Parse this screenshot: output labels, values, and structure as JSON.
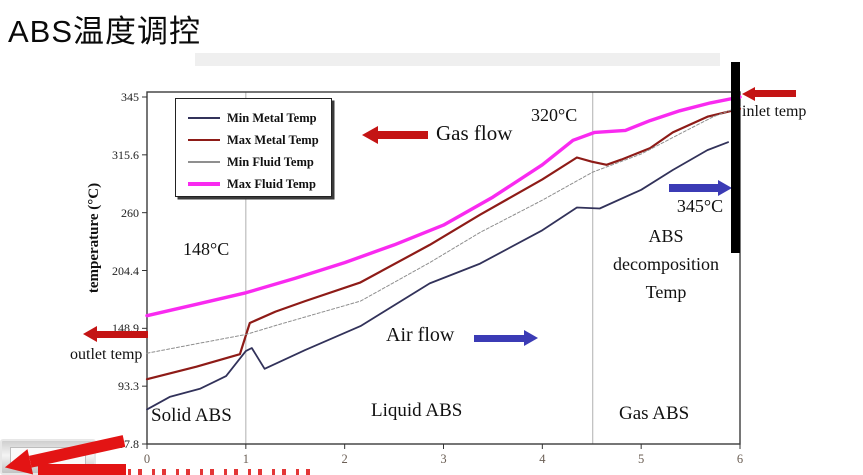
{
  "page": {
    "title": "ABS温度调控"
  },
  "chart_data": {
    "type": "line",
    "title": "",
    "xlabel": "",
    "ylabel": "temperature (°C)",
    "x_ticks": [
      "0",
      "1",
      "2",
      "3",
      "4",
      "5",
      "6"
    ],
    "y_ticks": [
      "345",
      "315.6",
      "260",
      "204.4",
      "148.9",
      "93.3",
      "37.8"
    ],
    "x_range": [
      0,
      6
    ],
    "grid": "region dividers only",
    "legend_position": "top-left inside plot",
    "region_dividers_x": [
      1,
      4.51
    ],
    "regions": [
      "Solid ABS",
      "Liquid ABS",
      "Gas ABS"
    ],
    "series": [
      {
        "name": "Min Metal Temp",
        "color": "#32325a",
        "width": 1.8,
        "dash": "",
        "points": [
          [
            0,
            71
          ],
          [
            0.23,
            83
          ],
          [
            0.54,
            91
          ],
          [
            0.8,
            103
          ],
          [
            1.0,
            127
          ],
          [
            1.06,
            130
          ],
          [
            1.19,
            110
          ],
          [
            1.6,
            128
          ],
          [
            2.16,
            151
          ],
          [
            2.86,
            192
          ],
          [
            3.37,
            211
          ],
          [
            4.0,
            243
          ],
          [
            4.35,
            265
          ],
          [
            4.58,
            264
          ],
          [
            5.0,
            282
          ],
          [
            5.32,
            301
          ],
          [
            5.67,
            318
          ],
          [
            5.88,
            322
          ]
        ]
      },
      {
        "name": "Max Metal Temp",
        "color": "#8e1b17",
        "width": 2.2,
        "dash": "",
        "points": [
          [
            0,
            100
          ],
          [
            0.5,
            112
          ],
          [
            0.94,
            124
          ],
          [
            1.04,
            154
          ],
          [
            1.3,
            165
          ],
          [
            1.6,
            175
          ],
          [
            2.16,
            193
          ],
          [
            2.86,
            229
          ],
          [
            3.37,
            258
          ],
          [
            4.0,
            292
          ],
          [
            4.35,
            313
          ],
          [
            4.5,
            309
          ],
          [
            4.65,
            306
          ],
          [
            4.8,
            311
          ],
          [
            5.09,
            319
          ],
          [
            5.32,
            327
          ],
          [
            5.67,
            335
          ],
          [
            6,
            339
          ]
        ]
      },
      {
        "name": "Min Fluid Temp",
        "color": "#8f8f8f",
        "width": 1,
        "dash": "3 2",
        "points": [
          [
            0,
            125
          ],
          [
            0.5,
            134
          ],
          [
            1.0,
            143
          ],
          [
            1.35,
            153
          ],
          [
            2.16,
            175
          ],
          [
            2.86,
            212
          ],
          [
            3.37,
            241
          ],
          [
            4.0,
            272
          ],
          [
            4.51,
            299
          ],
          [
            5.0,
            316
          ],
          [
            5.42,
            327
          ],
          [
            5.73,
            335
          ],
          [
            6,
            340
          ]
        ]
      },
      {
        "name": "Max Fluid Temp",
        "color": "#f92af0",
        "width": 3.4,
        "dash": "",
        "points": [
          [
            0,
            161
          ],
          [
            0.5,
            172
          ],
          [
            1.0,
            183
          ],
          [
            1.5,
            197
          ],
          [
            2.0,
            212
          ],
          [
            2.5,
            229
          ],
          [
            3.0,
            248
          ],
          [
            3.5,
            275
          ],
          [
            4.0,
            306
          ],
          [
            4.31,
            323
          ],
          [
            4.53,
            327
          ],
          [
            4.84,
            328
          ],
          [
            5.09,
            333
          ],
          [
            5.39,
            338
          ],
          [
            5.7,
            342
          ],
          [
            6,
            345
          ]
        ]
      }
    ],
    "annotations": [
      {
        "text": "148°C",
        "near": "left region above Max Fluid curve"
      },
      {
        "text": "320°C",
        "near": "Max Fluid curve at region divider x≈4.5"
      },
      {
        "text": "345°C",
        "near": "right region, ABS decomposition temp"
      },
      {
        "text": "Gas flow",
        "arrow": "red, pointing left"
      },
      {
        "text": "Air flow",
        "arrow": "blue, pointing right"
      },
      {
        "text": "inlet temp",
        "arrow": "red, pointing left at top-right black bar"
      },
      {
        "text": "outlet temp",
        "arrow": "red, pointing left at y≈148.9"
      }
    ]
  },
  "labels": {
    "gas_flow": "Gas flow",
    "temp_320": "320°C",
    "temp_148": "148°C",
    "temp_345": "345°C",
    "abs_decomposition_line1": "ABS",
    "abs_decomposition_line2": "decomposition",
    "abs_decomposition_line3": "Temp",
    "air_flow": "Air flow",
    "inlet_temp": "inlet temp",
    "outlet_temp": "outlet temp"
  },
  "colors": {
    "red_arrow": "#c41414",
    "blue_arrow": "#3b3bb5",
    "plot_border": "#3c3c3c",
    "divider": "#b0b0b0"
  }
}
